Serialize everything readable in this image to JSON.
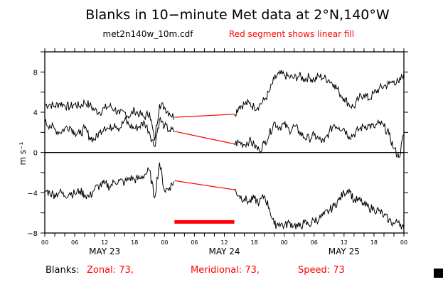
{
  "chart_data": {
    "type": "line",
    "title": "Blanks in 10−minute Met data at 2°N,140°W",
    "subtitle": "met2n140w_10m.cdf",
    "annotation": "Red segment shows linear fill",
    "ylabel": "m s⁻¹",
    "ylim": [
      -8,
      10
    ],
    "yticks": [
      -8,
      -4,
      0,
      4,
      8
    ],
    "ytick_labels": [
      "−8",
      "−4",
      "0",
      "4",
      "8"
    ],
    "x_unit": "hours since May 23 00:00",
    "xlim": [
      0,
      72
    ],
    "xtick_labels": [
      "00",
      "06",
      "12",
      "18",
      "00",
      "06",
      "12",
      "18",
      "00",
      "06",
      "12",
      "18",
      "00"
    ],
    "day_labels": [
      "MAY 23",
      "MAY 24",
      "MAY 25"
    ],
    "fill_gap_hours": [
      26,
      38
    ],
    "fill_bar_value": -6.9,
    "series": [
      {
        "name": "Speed",
        "values": [
          4.7,
          4.8,
          4.6,
          4.9,
          4.7,
          4.5,
          4.8,
          4.6,
          5.0,
          4.7,
          4.2,
          4.0,
          4.4,
          4.6,
          4.3,
          3.8,
          4.0,
          3.6,
          4.2,
          3.8,
          3.5,
          4.0,
          1.2,
          4.8,
          4.5,
          3.9,
          3.5,
          null,
          null,
          null,
          null,
          null,
          null,
          null,
          null,
          null,
          null,
          null,
          3.8,
          4.6,
          4.8,
          4.9,
          4.5,
          4.7,
          5.2,
          6.0,
          7.3,
          7.8,
          7.7,
          7.5,
          7.4,
          7.6,
          7.3,
          7.5,
          7.2,
          7.6,
          7.4,
          7.2,
          6.8,
          6.0,
          5.4,
          4.8,
          4.5,
          5.4,
          5.8,
          5.3,
          5.9,
          6.3,
          6.6,
          6.8,
          7.1,
          6.9,
          7.9
        ]
      },
      {
        "name": "Meridional",
        "values": [
          3.0,
          2.7,
          2.3,
          2.0,
          2.4,
          2.6,
          2.0,
          1.8,
          2.4,
          1.5,
          1.3,
          2.0,
          2.6,
          2.3,
          2.9,
          2.4,
          3.2,
          2.7,
          2.4,
          2.6,
          3.0,
          2.0,
          0.6,
          3.3,
          2.6,
          2.2,
          2.1,
          null,
          null,
          null,
          null,
          null,
          null,
          null,
          null,
          null,
          null,
          null,
          0.85,
          1.0,
          0.8,
          1.2,
          0.7,
          0.2,
          0.9,
          1.8,
          3.0,
          2.5,
          2.8,
          2.2,
          2.6,
          2.1,
          1.5,
          1.4,
          1.7,
          1.3,
          1.0,
          2.0,
          2.8,
          2.5,
          2.4,
          1.6,
          1.8,
          2.3,
          2.6,
          2.7,
          2.5,
          2.9,
          2.6,
          1.8,
          0.4,
          -0.5,
          1.8
        ]
      },
      {
        "name": "Zonal",
        "values": [
          -3.8,
          -4.0,
          -4.2,
          -3.9,
          -4.3,
          -4.0,
          -4.1,
          -3.8,
          -4.2,
          -4.4,
          -3.6,
          -3.3,
          -3.1,
          -3.4,
          -2.9,
          -2.8,
          -3.0,
          -2.5,
          -2.7,
          -2.6,
          -2.2,
          -1.8,
          -4.5,
          -1.0,
          -3.8,
          -3.5,
          -2.8,
          null,
          null,
          null,
          null,
          null,
          null,
          null,
          null,
          null,
          null,
          null,
          -3.7,
          -4.3,
          -4.6,
          -4.9,
          -4.6,
          -5.0,
          -4.3,
          -5.5,
          -7.2,
          -7.0,
          -7.3,
          -7.0,
          -7.2,
          -7.4,
          -7.0,
          -7.2,
          -6.7,
          -6.6,
          -6.2,
          -5.8,
          -5.3,
          -4.7,
          -4.0,
          -3.6,
          -4.8,
          -4.7,
          -5.2,
          -5.5,
          -5.6,
          -5.8,
          -6.3,
          -6.7,
          -7.1,
          -6.8,
          -7.6
        ]
      }
    ],
    "colors": {
      "data": "#000000",
      "fill": "#ff0000"
    }
  },
  "footer": {
    "label": "Blanks:",
    "zonal": "Zonal: 73,",
    "meridional": "Meridional: 73,",
    "speed": "Speed: 73"
  }
}
